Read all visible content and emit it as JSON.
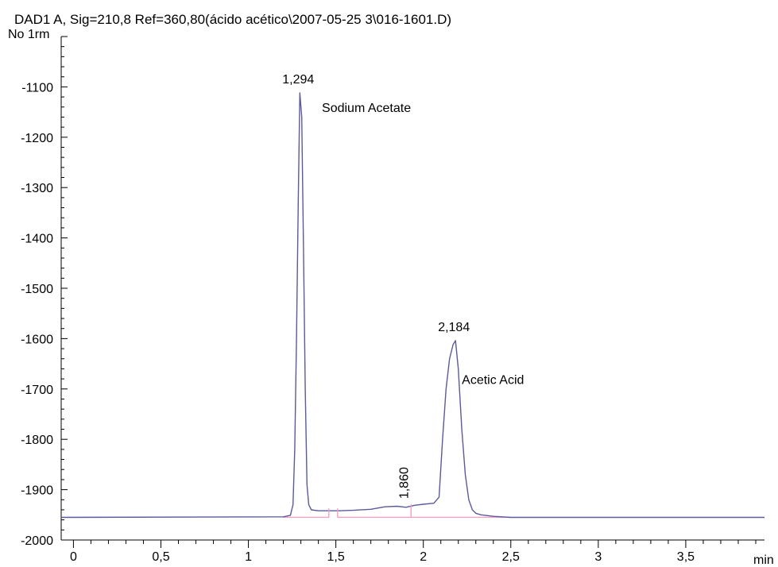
{
  "chart_data": {
    "type": "line",
    "title": "DAD1 A, Sig=210,8 Ref=360,80(ácido acético\\2007-05-25 3\\016-1601.D)",
    "ylabel": "No 1rm",
    "xlabel": "min",
    "xlim": [
      -0.07,
      3.95
    ],
    "ylim": [
      -2000,
      -1000
    ],
    "x_ticks": [
      0,
      0.5,
      1,
      1.5,
      2,
      2.5,
      3,
      3.5
    ],
    "x_tick_labels": [
      "0",
      "0,5",
      "1",
      "1,5",
      "2",
      "2,5",
      "3",
      "3,5"
    ],
    "y_ticks": [
      -1100,
      -1200,
      -1300,
      -1400,
      -1500,
      -1600,
      -1700,
      -1800,
      -1900,
      -2000
    ],
    "y_tick_labels": [
      "-1100",
      "-1200",
      "-1300",
      "-1400",
      "-1500",
      "-1600",
      "-1700",
      "-1800",
      "-1900",
      "-2000"
    ],
    "colors": {
      "signal": "#5a5a9c",
      "baseline": "#f2a0c0",
      "axis": "#000000"
    },
    "series": [
      {
        "x": [
          -0.07,
          1.2,
          1.24,
          1.255,
          1.265,
          1.275,
          1.285,
          1.294,
          1.305,
          1.315,
          1.325,
          1.335,
          1.345,
          1.36,
          1.4,
          1.46,
          1.52,
          1.6,
          1.7,
          1.78,
          1.85,
          1.9,
          1.95,
          2.0,
          2.06,
          2.09,
          2.11,
          2.13,
          2.15,
          2.17,
          2.184,
          2.2,
          2.22,
          2.24,
          2.26,
          2.28,
          2.3,
          2.33,
          2.4,
          2.5,
          2.6,
          3.0,
          3.5,
          3.95
        ],
        "y": [
          -1955,
          -1954,
          -1951,
          -1930,
          -1820,
          -1600,
          -1330,
          -1112,
          -1160,
          -1420,
          -1700,
          -1890,
          -1930,
          -1940,
          -1942,
          -1942,
          -1942,
          -1941,
          -1939,
          -1934,
          -1933,
          -1935,
          -1931,
          -1929,
          -1927,
          -1915,
          -1800,
          -1700,
          -1640,
          -1612,
          -1604,
          -1660,
          -1780,
          -1870,
          -1920,
          -1940,
          -1947,
          -1950,
          -1953,
          -1955,
          -1955,
          -1955,
          -1955,
          -1955
        ]
      }
    ],
    "baseline_segments": [
      {
        "x": [
          1.2,
          1.46
        ],
        "y": [
          -1955,
          -1955
        ]
      },
      {
        "x": [
          1.51,
          1.93
        ],
        "y": [
          -1955,
          -1955
        ]
      },
      {
        "x": [
          1.93,
          2.5
        ],
        "y": [
          -1955,
          -1955
        ]
      }
    ],
    "peak_markers": [
      {
        "x": 1.46,
        "y": -1942
      },
      {
        "x": 1.51,
        "y": -1942
      },
      {
        "x": 1.93,
        "y": -1934
      }
    ],
    "peak_labels": [
      {
        "text": "1,294",
        "x": 1.294,
        "y": -1112,
        "rotated": false
      },
      {
        "text": "2,184",
        "x": 2.184,
        "y": -1604,
        "rotated": false
      },
      {
        "text": "1,860",
        "x": 1.93,
        "y": -1934,
        "rotated": true
      }
    ],
    "annotations": [
      {
        "text": "Sodium Acetate",
        "x": 1.42,
        "y": -1150
      },
      {
        "text": "Acetic Acid",
        "x": 2.22,
        "y": -1690
      }
    ]
  }
}
